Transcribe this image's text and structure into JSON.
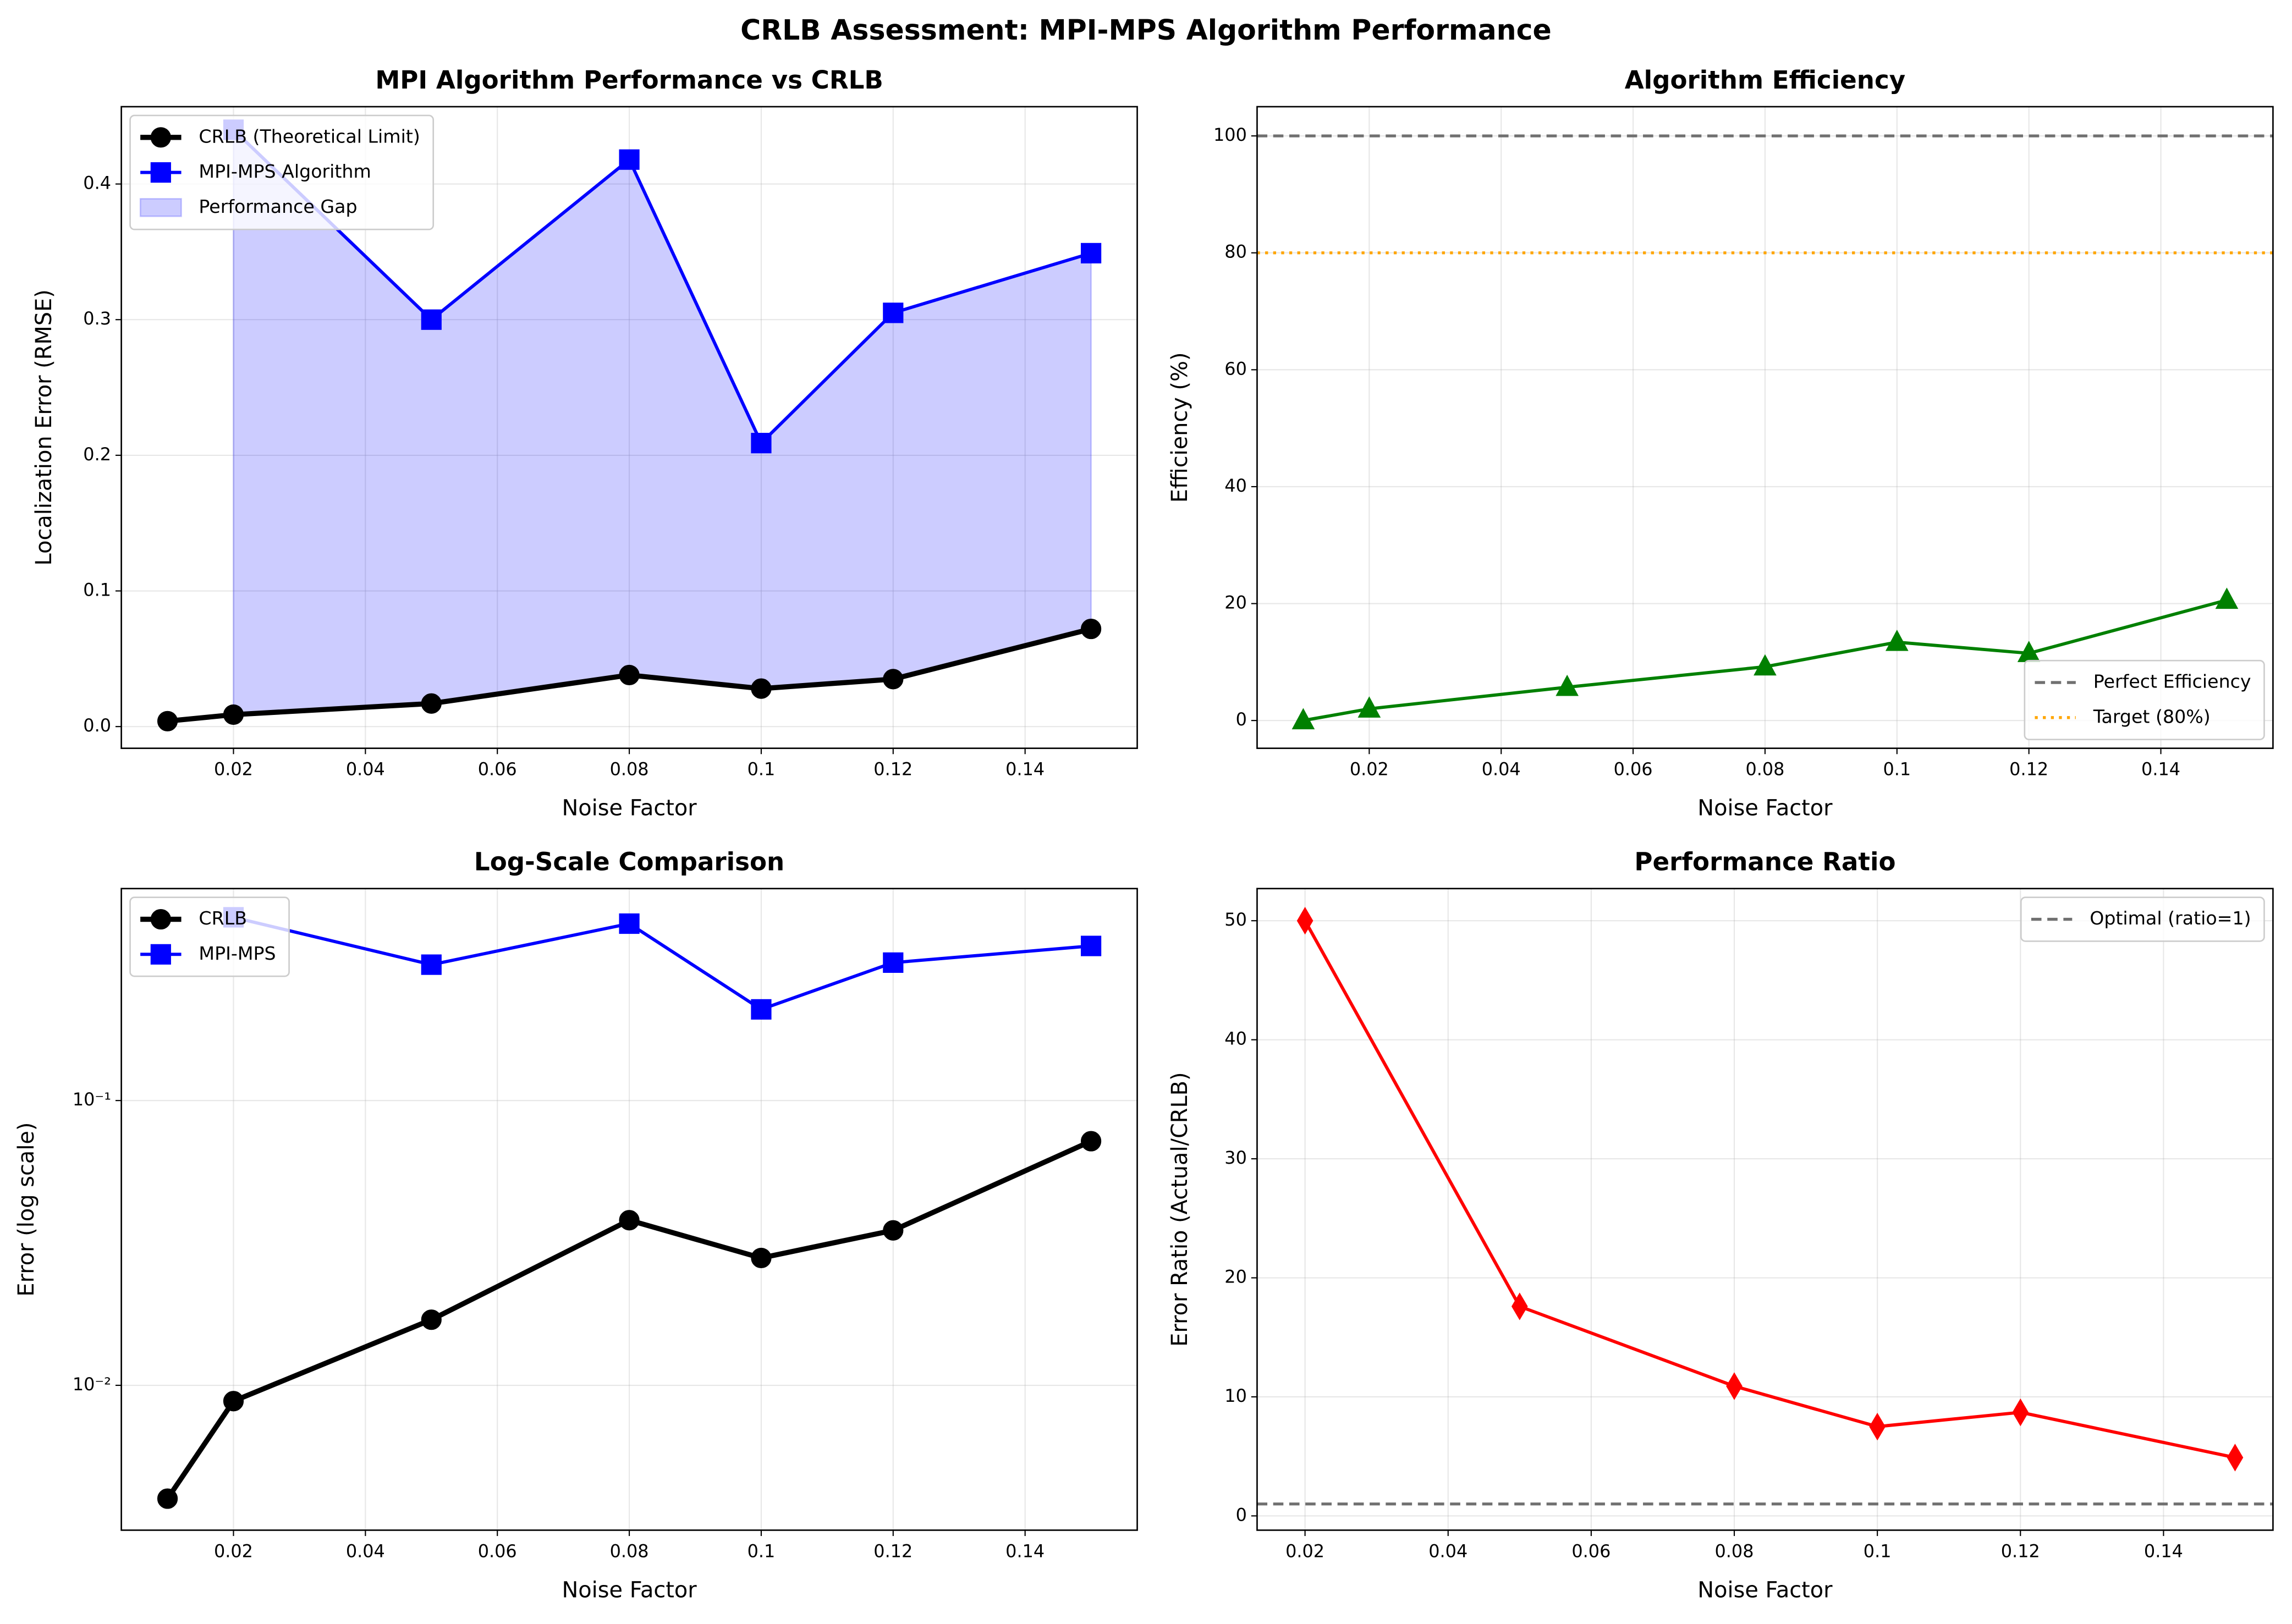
{
  "title": "CRLB Assessment: MPI-MPS Algorithm Performance",
  "chart_data": [
    {
      "type": "line",
      "title": "MPI Algorithm Performance vs CRLB",
      "x_label": "Noise Factor",
      "y_label": "Localization Error (RMSE)",
      "x": [
        0.01,
        0.02,
        0.05,
        0.08,
        0.1,
        0.12,
        0.15
      ],
      "series": [
        {
          "name": "CRLB (Theoretical Limit)",
          "color": "#000000",
          "marker": "circle",
          "line_width": 3.5,
          "values": [
            0.004,
            0.0088,
            0.017,
            0.038,
            0.028,
            0.035,
            0.072
          ]
        },
        {
          "name": "MPI-MPS Algorithm",
          "color": "#0000ff",
          "marker": "square",
          "line_width": 2.2,
          "values": [
            null,
            0.44,
            0.3,
            0.418,
            0.209,
            0.305,
            0.349
          ]
        }
      ],
      "fill_between": {
        "name": "Performance Gap",
        "color": "#0000ff",
        "opacity": 0.2,
        "upper": 1,
        "lower": 0
      },
      "xlim": [
        0.003,
        0.157
      ],
      "ylim": [
        -0.016,
        0.457
      ],
      "xticks": [
        0.02,
        0.04,
        0.06,
        0.08,
        0.1,
        0.12,
        0.14
      ],
      "yticks": [
        {
          "value": 0,
          "label": "0.0"
        },
        0.1,
        0.2,
        0.3,
        0.4
      ],
      "grid": true,
      "legend": "upper left"
    },
    {
      "type": "line",
      "title": "Algorithm Efficiency",
      "x_label": "Noise Factor",
      "y_label": "Efficiency (%)",
      "x": [
        0.01,
        0.02,
        0.05,
        0.08,
        0.1,
        0.12,
        0.15
      ],
      "series": [
        {
          "name": "Efficiency",
          "color": "#008000",
          "marker": "triangle",
          "line_width": 2.2,
          "values": [
            0,
            2,
            5.7,
            9.2,
            13.4,
            11.5,
            20.6
          ],
          "in_legend": false
        }
      ],
      "hlines": [
        {
          "y": 100,
          "name": "Perfect Efficiency",
          "color": "#707070",
          "style": "dashed"
        },
        {
          "y": 80,
          "name": "Target (80%)",
          "color": "#ffa500",
          "style": "dotted"
        }
      ],
      "xlim": [
        0.003,
        0.157
      ],
      "ylim": [
        -4.75,
        105
      ],
      "xticks": [
        0.02,
        0.04,
        0.06,
        0.08,
        0.1,
        0.12,
        0.14
      ],
      "yticks": [
        0,
        20,
        40,
        60,
        80,
        100
      ],
      "grid": true,
      "legend": "lower right"
    },
    {
      "type": "line",
      "title": "Log-Scale Comparison",
      "x_label": "Noise Factor",
      "y_label": "Error (log scale)",
      "x": [
        0.01,
        0.02,
        0.05,
        0.08,
        0.1,
        0.12,
        0.15
      ],
      "series": [
        {
          "name": "CRLB",
          "color": "#000000",
          "marker": "circle",
          "line_width": 3.5,
          "values": [
            0.004,
            0.0088,
            0.017,
            0.038,
            0.028,
            0.035,
            0.072
          ]
        },
        {
          "name": "MPI-MPS",
          "color": "#0000ff",
          "marker": "square",
          "line_width": 2.2,
          "values": [
            null,
            0.44,
            0.3,
            0.418,
            0.209,
            0.305,
            0.349
          ]
        }
      ],
      "xlim": [
        0.003,
        0.157
      ],
      "ylim": [
        0.0031,
        0.555
      ],
      "yscale": "log",
      "xticks": [
        0.02,
        0.04,
        0.06,
        0.08,
        0.1,
        0.12,
        0.14
      ],
      "yticks": [
        {
          "value": 0.01,
          "label": "10⁻²"
        },
        {
          "value": 0.1,
          "label": "10⁻¹"
        }
      ],
      "grid": true,
      "legend": "upper left"
    },
    {
      "type": "line",
      "title": "Performance Ratio",
      "x_label": "Noise Factor",
      "y_label": "Error Ratio (Actual/CRLB)",
      "x": [
        0.02,
        0.05,
        0.08,
        0.1,
        0.12,
        0.15
      ],
      "series": [
        {
          "name": "Ratio",
          "color": "#ff0000",
          "marker": "diamond",
          "line_width": 2.2,
          "values": [
            50,
            17.6,
            10.9,
            7.5,
            8.7,
            4.9
          ],
          "in_legend": false
        }
      ],
      "hlines": [
        {
          "y": 1,
          "name": "Optimal (ratio=1)",
          "color": "#707070",
          "style": "dashed"
        }
      ],
      "xlim": [
        0.0133,
        0.1553
      ],
      "ylim": [
        -1.2,
        52.7
      ],
      "xticks": [
        0.02,
        0.04,
        0.06,
        0.08,
        0.1,
        0.12,
        0.14
      ],
      "yticks": [
        0,
        10,
        20,
        30,
        40,
        50
      ],
      "grid": true,
      "legend": "upper right"
    }
  ]
}
